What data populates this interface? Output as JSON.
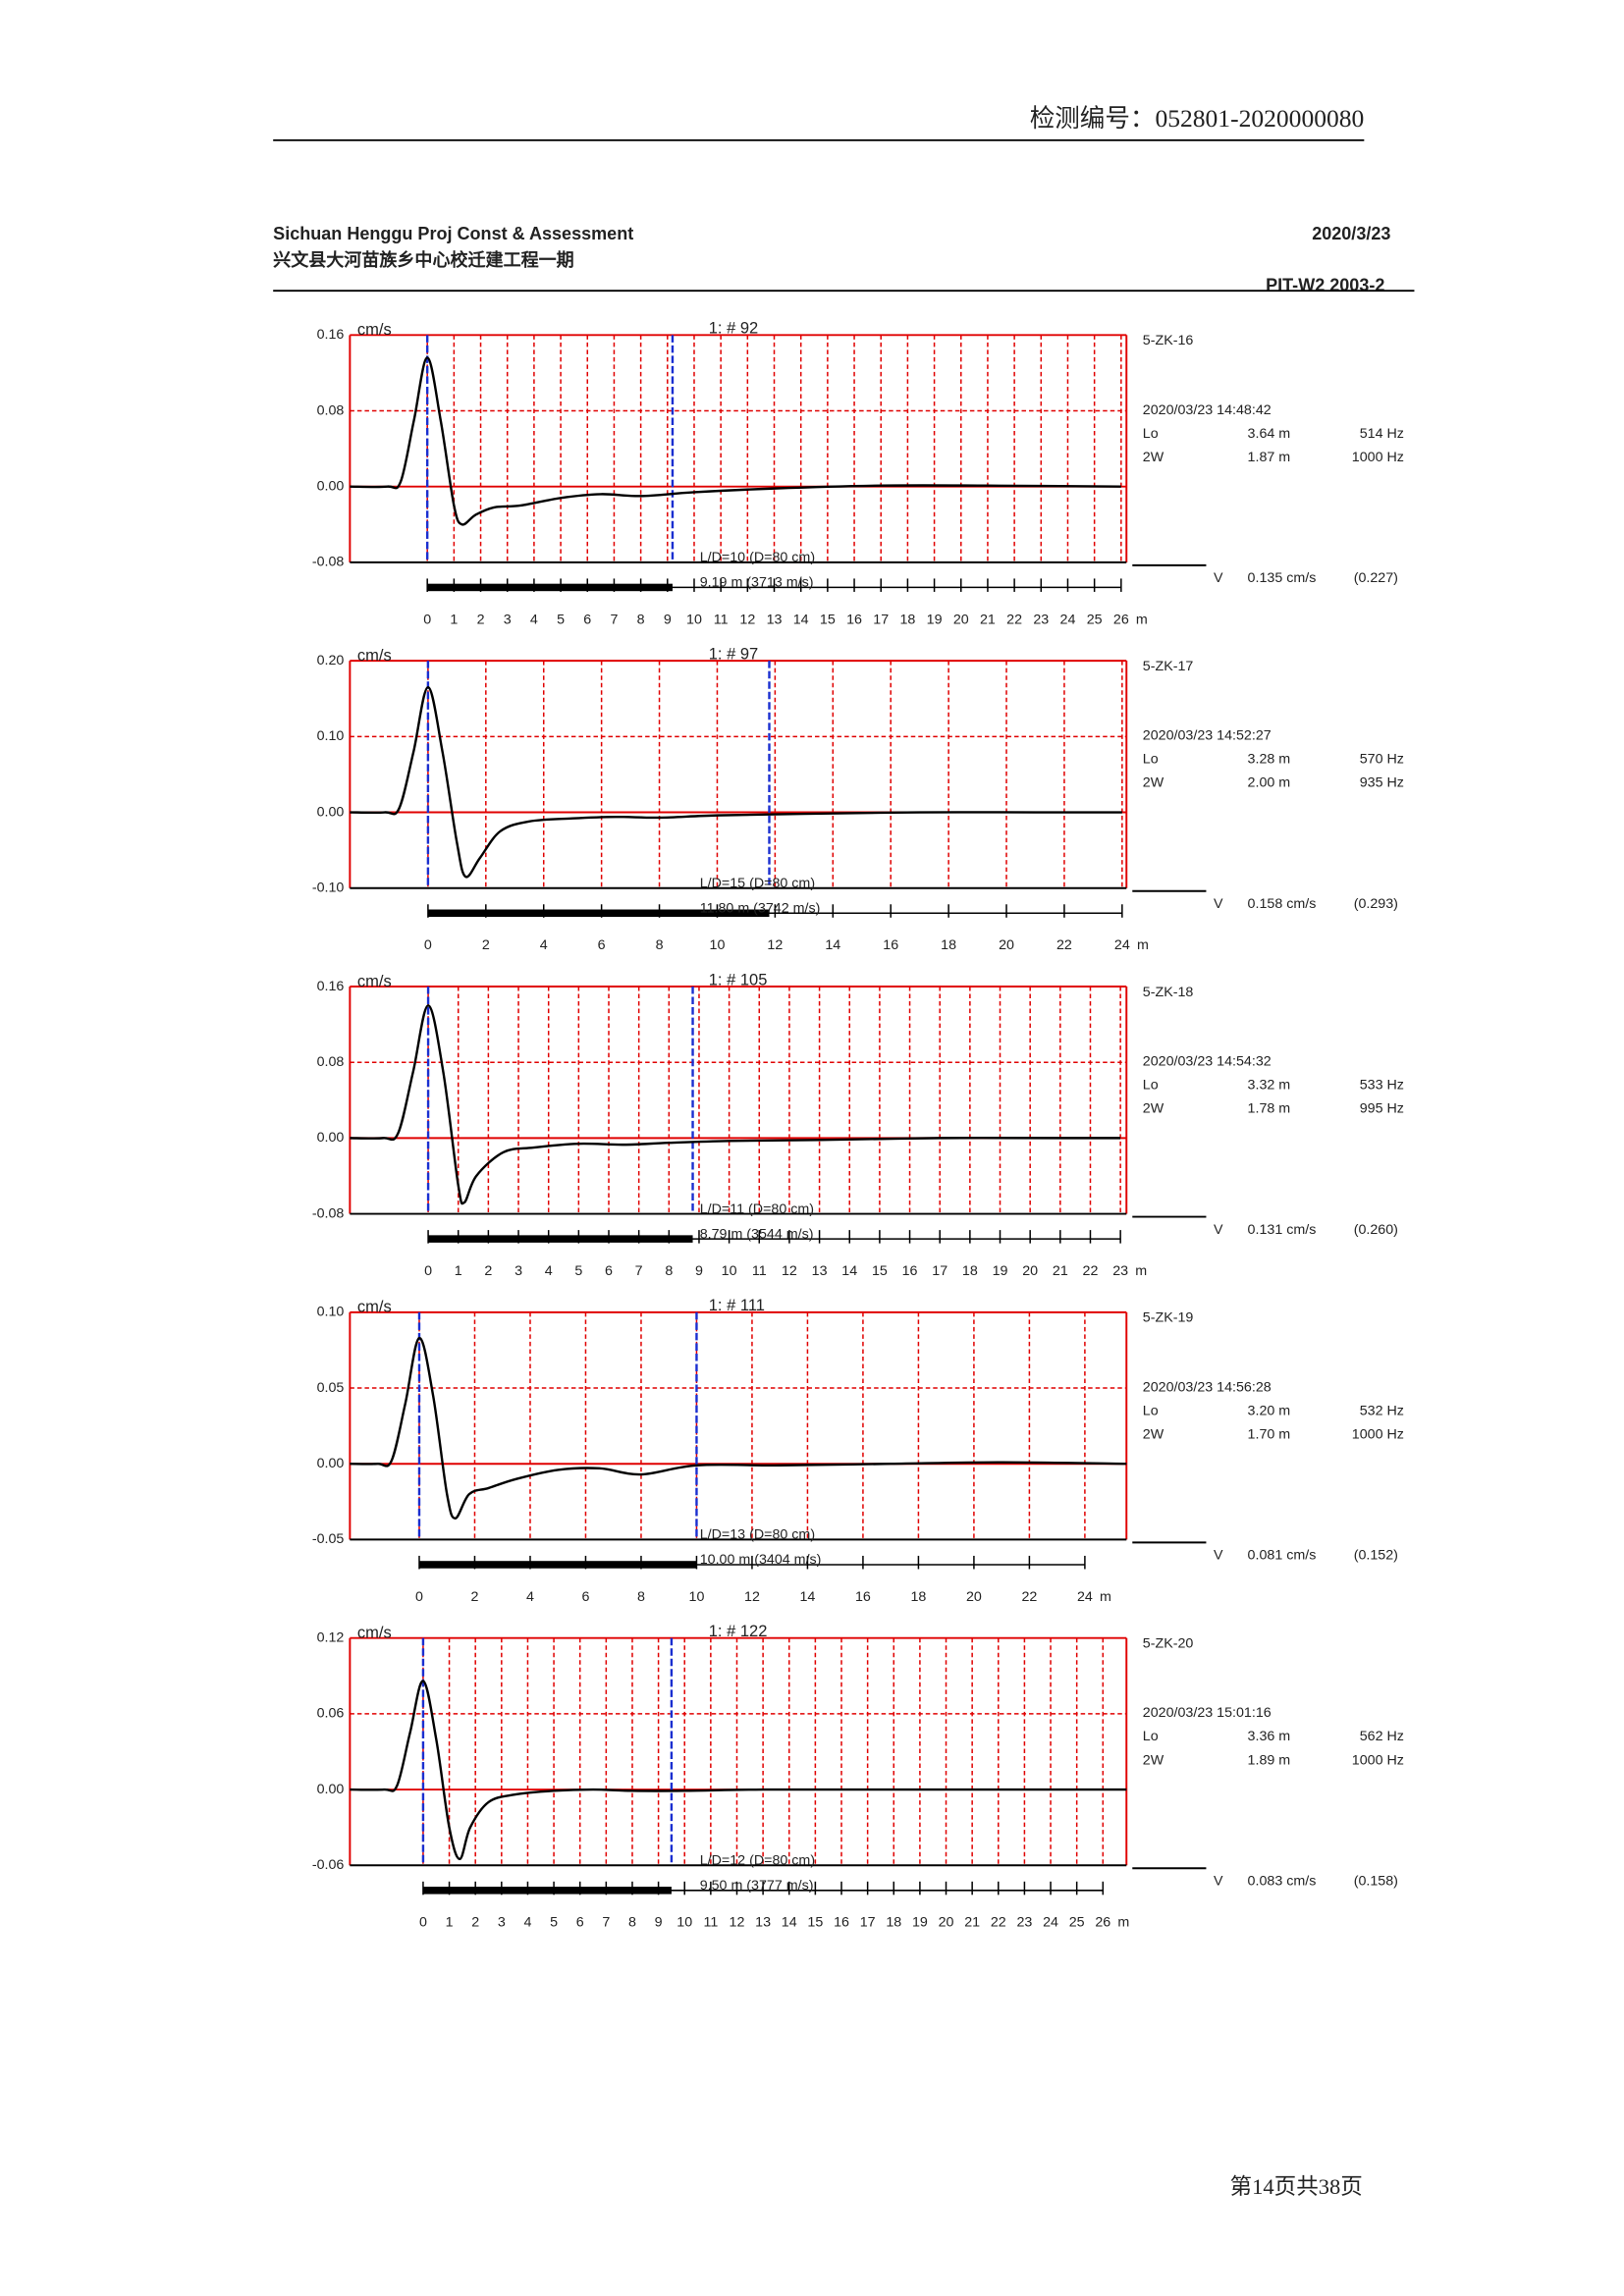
{
  "header": {
    "doc_no": "检测编号：052801-2020000080",
    "company": "Sichuan Henggu Proj Const & Assessment",
    "date": "2020/3/23",
    "project": "兴文县大河苗族乡中心校迁建工程一期",
    "device": "PIT-W2 2003-2"
  },
  "footer": "第14页共38页",
  "chart_data": [
    {
      "type": "line",
      "title": "1: # 92",
      "ylabel": "cm/s",
      "xlabel": "m",
      "pile": "5-ZK-16",
      "time": "2020/03/23 14:48:42",
      "lo_label": "Lo",
      "lo_len": "3.64 m",
      "lo_freq": "514 Hz",
      "w_label": "2W",
      "w_len": "1.87 m",
      "w_freq": "1000 Hz",
      "v_label": "V",
      "velocity": "0.135 cm/s",
      "velocity_max": "(0.227)",
      "ld": "L/D=10 (D=80 cm)",
      "length_text": "9.19 m (3713 m/s)",
      "markers": [
        0,
        9.19
      ],
      "color": "#000000",
      "grid_color": "#e00000",
      "marker_color": "#1a2fd0",
      "xlim": [
        -2.9,
        26.2
      ],
      "ylim": [
        -0.08,
        0.16
      ],
      "xticks": [
        0,
        1,
        2,
        3,
        4,
        5,
        6,
        7,
        8,
        9,
        10,
        11,
        12,
        13,
        14,
        15,
        16,
        17,
        18,
        19,
        20,
        21,
        22,
        23,
        24,
        25,
        26
      ],
      "yticks": [
        -0.08,
        {
          "value": 0,
          "label": "0.00"
        },
        0.08,
        0.16
      ],
      "x": [
        -2.9,
        -1.5,
        -1,
        -0.5,
        0,
        0.5,
        1,
        1.3,
        1.8,
        2.5,
        3.5,
        5,
        6.5,
        8,
        10,
        13,
        17,
        21,
        26
      ],
      "values": [
        0,
        0,
        0.005,
        0.07,
        0.136,
        0.07,
        -0.02,
        -0.04,
        -0.03,
        -0.022,
        -0.02,
        -0.012,
        -0.008,
        -0.01,
        -0.006,
        -0.002,
        0.001,
        0.001,
        0
      ]
    },
    {
      "type": "line",
      "title": "1: # 97",
      "ylabel": "cm/s",
      "xlabel": "m",
      "pile": "5-ZK-17",
      "time": "2020/03/23 14:52:27",
      "lo_label": "Lo",
      "lo_len": "3.28 m",
      "lo_freq": "570 Hz",
      "w_label": "2W",
      "w_len": "2.00 m",
      "w_freq": "935 Hz",
      "v_label": "V",
      "velocity": "0.158 cm/s",
      "velocity_max": "(0.293)",
      "ld": "L/D=15 (D=80 cm)",
      "length_text": "11.80 m (3742 m/s)",
      "markers": [
        0,
        11.8
      ],
      "color": "#000000",
      "grid_color": "#e00000",
      "marker_color": "#1a2fd0",
      "xlim": [
        -2.7,
        24.15
      ],
      "ylim": [
        -0.1,
        0.2
      ],
      "xticks": [
        0,
        2,
        4,
        6,
        8,
        10,
        12,
        14,
        16,
        18,
        20,
        22,
        24
      ],
      "yticks": [
        {
          "value": -0.1,
          "label": "-0.10"
        },
        {
          "value": 0,
          "label": "0.00"
        },
        {
          "value": 0.1,
          "label": "0.10"
        },
        {
          "value": 0.2,
          "label": "0.20"
        }
      ],
      "x": [
        -2.7,
        -1.5,
        -1,
        -0.5,
        0,
        0.5,
        1,
        1.3,
        1.8,
        2.5,
        3.5,
        5,
        6.5,
        8,
        10,
        13,
        17,
        21,
        24
      ],
      "values": [
        0,
        0,
        0.005,
        0.08,
        0.165,
        0.08,
        -0.04,
        -0.085,
        -0.06,
        -0.025,
        -0.012,
        -0.008,
        -0.006,
        -0.007,
        -0.004,
        -0.002,
        0,
        0,
        0
      ]
    },
    {
      "type": "line",
      "title": "1: # 105",
      "ylabel": "cm/s",
      "xlabel": "m",
      "pile": "5-ZK-18",
      "time": "2020/03/23 14:54:32",
      "lo_label": "Lo",
      "lo_len": "3.32 m",
      "lo_freq": "533 Hz",
      "w_label": "2W",
      "w_len": "1.78 m",
      "w_freq": "995 Hz",
      "v_label": "V",
      "velocity": "0.131 cm/s",
      "velocity_max": "(0.260)",
      "ld": "L/D=11 (D=80 cm)",
      "length_text": "8.79 m (3544 m/s)",
      "markers": [
        0,
        8.79
      ],
      "color": "#000000",
      "grid_color": "#e00000",
      "marker_color": "#1a2fd0",
      "xlim": [
        -2.6,
        23.2
      ],
      "ylim": [
        -0.08,
        0.16
      ],
      "xticks": [
        0,
        1,
        2,
        3,
        4,
        5,
        6,
        7,
        8,
        9,
        10,
        11,
        12,
        13,
        14,
        15,
        16,
        17,
        18,
        19,
        20,
        21,
        22,
        23
      ],
      "yticks": [
        -0.08,
        {
          "value": 0,
          "label": "0.00"
        },
        0.08,
        0.16
      ],
      "x": [
        -2.6,
        -1.5,
        -1,
        -0.5,
        0,
        0.5,
        1,
        1.2,
        1.6,
        2.5,
        3.5,
        5,
        6.5,
        8,
        10,
        13,
        17,
        21,
        23
      ],
      "values": [
        0,
        0,
        0.005,
        0.07,
        0.14,
        0.07,
        -0.05,
        -0.068,
        -0.04,
        -0.015,
        -0.01,
        -0.006,
        -0.007,
        -0.005,
        -0.003,
        -0.002,
        0,
        0,
        0
      ]
    },
    {
      "type": "line",
      "title": "1: # 111",
      "ylabel": "cm/s",
      "xlabel": "m",
      "pile": "5-ZK-19",
      "time": "2020/03/23 14:56:28",
      "lo_label": "Lo",
      "lo_len": "3.20 m",
      "lo_freq": "532 Hz",
      "w_label": "2W",
      "w_len": "1.70 m",
      "w_freq": "1000 Hz",
      "v_label": "V",
      "velocity": "0.081 cm/s",
      "velocity_max": "(0.152)",
      "ld": "L/D=13 (D=80 cm)",
      "length_text": "10.00 m (3404 m/s)",
      "markers": [
        0,
        10
      ],
      "color": "#000000",
      "grid_color": "#e00000",
      "marker_color": "#1a2fd0",
      "xlim": [
        -2.5,
        25.5
      ],
      "ylim": [
        -0.05,
        0.1
      ],
      "xticks": [
        0,
        2,
        4,
        6,
        8,
        10,
        12,
        14,
        16,
        18,
        20,
        22,
        24
      ],
      "yticks": [
        -0.05,
        {
          "value": 0,
          "label": "0.00"
        },
        0.05,
        {
          "value": 0.1,
          "label": "0.10"
        }
      ],
      "x": [
        -2.5,
        -1.5,
        -1,
        -0.5,
        0,
        0.5,
        1,
        1.3,
        1.8,
        2.5,
        3.5,
        5,
        6.5,
        8,
        10,
        13,
        17,
        21,
        25.5
      ],
      "values": [
        0,
        0,
        0.002,
        0.04,
        0.083,
        0.045,
        -0.02,
        -0.036,
        -0.02,
        -0.016,
        -0.01,
        -0.004,
        -0.003,
        -0.007,
        -0.001,
        -0.001,
        0,
        0.001,
        0
      ]
    },
    {
      "type": "line",
      "title": "1: # 122",
      "ylabel": "cm/s",
      "xlabel": "m",
      "pile": "5-ZK-20",
      "time": "2020/03/23 15:01:16",
      "lo_label": "Lo",
      "lo_len": "3.36 m",
      "lo_freq": "562 Hz",
      "w_label": "2W",
      "w_len": "1.89 m",
      "w_freq": "1000 Hz",
      "v_label": "V",
      "velocity": "0.083 cm/s",
      "velocity_max": "(0.158)",
      "ld": "L/D=12 (D=80 cm)",
      "length_text": "9.50 m (3777 m/s)",
      "markers": [
        0,
        9.5
      ],
      "color": "#000000",
      "grid_color": "#e00000",
      "marker_color": "#1a2fd0",
      "xlim": [
        -2.8,
        26.9
      ],
      "ylim": [
        -0.06,
        0.12
      ],
      "xticks": [
        0,
        1,
        2,
        3,
        4,
        5,
        6,
        7,
        8,
        9,
        10,
        11,
        12,
        13,
        14,
        15,
        16,
        17,
        18,
        19,
        20,
        21,
        22,
        23,
        24,
        25,
        26
      ],
      "yticks": [
        -0.06,
        {
          "value": 0,
          "label": "0.00"
        },
        0.06,
        0.12
      ],
      "x": [
        -2.8,
        -1.5,
        -1,
        -0.5,
        0,
        0.5,
        1,
        1.4,
        1.8,
        2.5,
        3.5,
        5,
        6.5,
        8,
        10,
        13,
        17,
        21,
        26.9
      ],
      "values": [
        0,
        0,
        0.003,
        0.045,
        0.086,
        0.04,
        -0.03,
        -0.055,
        -0.03,
        -0.01,
        -0.004,
        -0.001,
        0,
        -0.001,
        -0.001,
        0,
        0,
        0,
        0
      ]
    }
  ]
}
